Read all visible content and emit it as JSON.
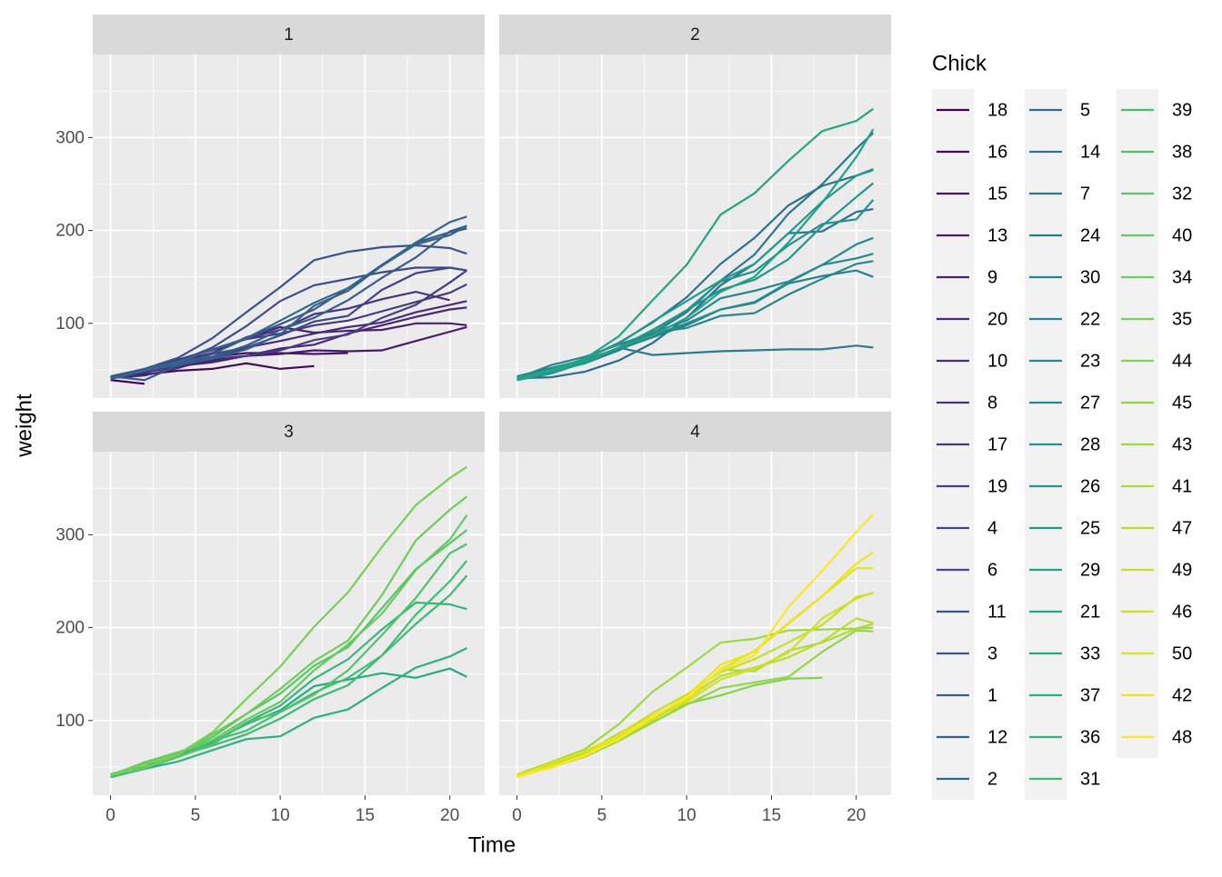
{
  "chart_data": {
    "type": "line",
    "x_label": "Time",
    "y_label": "weight",
    "legend_title": "Chick",
    "x": [
      0,
      2,
      4,
      6,
      8,
      10,
      12,
      14,
      16,
      18,
      20,
      21
    ],
    "xlim": [
      -1.05,
      22.05
    ],
    "xticks": [
      0,
      5,
      10,
      15,
      20
    ],
    "ylim": [
      19.6,
      389.4
    ],
    "yticks": [
      100,
      200,
      300
    ],
    "grid": true,
    "facets": [
      {
        "title": "1",
        "series": [
          {
            "name": "18",
            "color": "#440154",
            "values": [
              39,
              35,
              null,
              null,
              null,
              null,
              null,
              null,
              null,
              null,
              null,
              null
            ]
          },
          {
            "name": "16",
            "color": "#460a5d",
            "values": [
              41,
              45,
              49,
              51,
              57,
              51,
              54,
              null,
              null,
              null,
              null,
              null
            ]
          },
          {
            "name": "15",
            "color": "#471365",
            "values": [
              41,
              49,
              56,
              64,
              68,
              68,
              67,
              68,
              null,
              null,
              null,
              null
            ]
          },
          {
            "name": "13",
            "color": "#481b6d",
            "values": [
              41,
              48,
              53,
              60,
              65,
              67,
              71,
              70,
              71,
              81,
              91,
              96
            ]
          },
          {
            "name": "9",
            "color": "#482173",
            "values": [
              42,
              51,
              59,
              68,
              85,
              96,
              90,
              92,
              93,
              100,
              100,
              98
            ]
          },
          {
            "name": "20",
            "color": "#482576",
            "values": [
              41,
              47,
              54,
              58,
              65,
              73,
              77,
              89,
              98,
              107,
              115,
              117
            ]
          },
          {
            "name": "10",
            "color": "#472c7a",
            "values": [
              41,
              44,
              52,
              63,
              74,
              81,
              89,
              96,
              101,
              112,
              120,
              124
            ]
          },
          {
            "name": "8",
            "color": "#46337e",
            "values": [
              42,
              50,
              61,
              71,
              84,
              93,
              110,
              116,
              126,
              134,
              125,
              null
            ]
          },
          {
            "name": "17",
            "color": "#453981",
            "values": [
              42,
              51,
              61,
              72,
              83,
              89,
              98,
              103,
              113,
              123,
              133,
              142
            ]
          },
          {
            "name": "19",
            "color": "#433e85",
            "values": [
              43,
              48,
              55,
              62,
              65,
              71,
              82,
              88,
              106,
              120,
              144,
              157
            ]
          },
          {
            "name": "4",
            "color": "#414487",
            "values": [
              42,
              49,
              56,
              67,
              74,
              87,
              102,
              108,
              136,
              154,
              160,
              157
            ]
          },
          {
            "name": "6",
            "color": "#3e4a89",
            "values": [
              41,
              49,
              59,
              74,
              97,
              124,
              141,
              148,
              155,
              160,
              160,
              157
            ]
          },
          {
            "name": "11",
            "color": "#3b518b",
            "values": [
              43,
              51,
              63,
              84,
              112,
              139,
              168,
              177,
              182,
              184,
              181,
              175
            ]
          },
          {
            "name": "3",
            "color": "#38578c",
            "values": [
              43,
              39,
              55,
              67,
              84,
              99,
              115,
              138,
              163,
              187,
              198,
              202
            ]
          },
          {
            "name": "1",
            "color": "#365d8d",
            "values": [
              42,
              51,
              59,
              64,
              76,
              93,
              106,
              125,
              149,
              171,
              199,
              205
            ]
          },
          {
            "name": "12",
            "color": "#33638d",
            "values": [
              41,
              49,
              56,
              62,
              72,
              88,
              119,
              135,
              162,
              185,
              195,
              205
            ]
          },
          {
            "name": "2",
            "color": "#31688e",
            "values": [
              40,
              49,
              58,
              72,
              84,
              103,
              122,
              138,
              162,
              187,
              209,
              215
            ]
          }
        ]
      },
      {
        "title": "2",
        "series": [
          {
            "name": "5",
            "color": "#2f6d8e",
            "values": [
              41,
              42,
              48,
              60,
              79,
              106,
              141,
              164,
              197,
              199,
              220,
              223
            ]
          },
          {
            "name": "14",
            "color": "#2c728e",
            "values": [
              41,
              49,
              62,
              79,
              101,
              128,
              164,
              192,
              227,
              248,
              259,
              266
            ]
          },
          {
            "name": "7",
            "color": "#2a778e",
            "values": [
              41,
              49,
              57,
              71,
              89,
              112,
              146,
              174,
              218,
              250,
              288,
              305
            ]
          },
          {
            "name": "24",
            "color": "#287c8e",
            "values": [
              42,
              52,
              58,
              74,
              66,
              68,
              70,
              71,
              72,
              72,
              76,
              74
            ]
          },
          {
            "name": "30",
            "color": "#26818e",
            "values": [
              42,
              48,
              59,
              72,
              85,
              98,
              115,
              122,
              143,
              151,
              157,
              150
            ]
          },
          {
            "name": "22",
            "color": "#25868e",
            "values": [
              41,
              55,
              64,
              77,
              90,
              95,
              108,
              111,
              131,
              148,
              164,
              167
            ]
          },
          {
            "name": "23",
            "color": "#23898e",
            "values": [
              43,
              52,
              61,
              73,
              90,
              103,
              127,
              135,
              145,
              163,
              170,
              175
            ]
          },
          {
            "name": "27",
            "color": "#218e8d",
            "values": [
              39,
              46,
              58,
              73,
              87,
              100,
              115,
              123,
              144,
              163,
              185,
              192
            ]
          },
          {
            "name": "28",
            "color": "#20938c",
            "values": [
              39,
              46,
              58,
              73,
              92,
              114,
              145,
              156,
              184,
              207,
              212,
              233
            ]
          },
          {
            "name": "26",
            "color": "#1f988b",
            "values": [
              42,
              48,
              57,
              74,
              93,
              114,
              136,
              147,
              169,
              205,
              236,
              251
            ]
          },
          {
            "name": "25",
            "color": "#209d89",
            "values": [
              40,
              49,
              62,
              78,
              102,
              124,
              146,
              164,
              197,
              231,
              259,
              265
            ]
          },
          {
            "name": "29",
            "color": "#20a286",
            "values": [
              39,
              48,
              59,
              74,
              87,
              106,
              134,
              150,
              187,
              230,
              279,
              309
            ]
          },
          {
            "name": "21",
            "color": "#21a685",
            "values": [
              40,
              50,
              62,
              86,
              125,
              163,
              217,
              240,
              275,
              307,
              318,
              331
            ]
          }
        ]
      },
      {
        "title": "3",
        "series": [
          {
            "name": "33",
            "color": "#25ab82",
            "values": [
              39,
              50,
              63,
              77,
              96,
              111,
              137,
              144,
              151,
              146,
              156,
              147
            ]
          },
          {
            "name": "37",
            "color": "#2cb17e",
            "values": [
              41,
              48,
              56,
              68,
              80,
              83,
              103,
              112,
              135,
              157,
              169,
              178
            ]
          },
          {
            "name": "36",
            "color": "#33b67a",
            "values": [
              39,
              48,
              61,
              76,
              98,
              116,
              145,
              166,
              198,
              227,
              225,
              220
            ]
          },
          {
            "name": "31",
            "color": "#3bbb75",
            "values": [
              42,
              53,
              62,
              73,
              85,
              102,
              123,
              138,
              170,
              204,
              235,
              256
            ]
          },
          {
            "name": "39",
            "color": "#42bf71",
            "values": [
              42,
              50,
              61,
              78,
              89,
              109,
              130,
              146,
              170,
              214,
              250,
              272
            ]
          },
          {
            "name": "38",
            "color": "#4ec36b",
            "values": [
              41,
              49,
              61,
              74,
              98,
              109,
              128,
              154,
              192,
              232,
              280,
              290
            ]
          },
          {
            "name": "32",
            "color": "#58c765",
            "values": [
              41,
              49,
              65,
              82,
              107,
              129,
              159,
              179,
              221,
              263,
              291,
              305
            ]
          },
          {
            "name": "40",
            "color": "#63cb5f",
            "values": [
              41,
              55,
              66,
              79,
              101,
              120,
              154,
              182,
              215,
              262,
              295,
              321
            ]
          },
          {
            "name": "34",
            "color": "#6dcd59",
            "values": [
              41,
              49,
              63,
              85,
              107,
              134,
              164,
              186,
              235,
              294,
              327,
              341
            ]
          },
          {
            "name": "35",
            "color": "#77d153",
            "values": [
              41,
              53,
              64,
              87,
              123,
              158,
              201,
              238,
              287,
              332,
              361,
              373
            ]
          }
        ]
      },
      {
        "title": "4",
        "series": [
          {
            "name": "44",
            "color": "#83d44c",
            "values": [
              42,
              51,
              65,
              86,
              103,
              118,
              127,
              138,
              145,
              146,
              null,
              null
            ]
          },
          {
            "name": "45",
            "color": "#91d743",
            "values": [
              41,
              50,
              61,
              78,
              98,
              117,
              135,
              141,
              147,
              174,
              197,
              196
            ]
          },
          {
            "name": "43",
            "color": "#9ed93a",
            "values": [
              42,
              55,
              69,
              96,
              131,
              157,
              184,
              188,
              197,
              198,
              199,
              200
            ]
          },
          {
            "name": "41",
            "color": "#acdc30",
            "values": [
              42,
              51,
              66,
              85,
              103,
              124,
              155,
              153,
              175,
              184,
              199,
              204
            ]
          },
          {
            "name": "47",
            "color": "#b9de28",
            "values": [
              41,
              53,
              66,
              79,
              100,
              123,
              148,
              157,
              168,
              185,
              210,
              205
            ]
          },
          {
            "name": "49",
            "color": "#c6e021",
            "values": [
              40,
              53,
              64,
              85,
              108,
              128,
              152,
              166,
              184,
              203,
              233,
              237
            ]
          },
          {
            "name": "46",
            "color": "#d2e21b",
            "values": [
              40,
              52,
              62,
              82,
              101,
              120,
              144,
              156,
              173,
              210,
              231,
              238
            ]
          },
          {
            "name": "50",
            "color": "#dfe318",
            "values": [
              41,
              54,
              67,
              84,
              105,
              122,
              155,
              175,
              205,
              234,
              264,
              264
            ]
          },
          {
            "name": "42",
            "color": "#ece51b",
            "values": [
              42,
              49,
              63,
              84,
              103,
              126,
              160,
              174,
              204,
              234,
              269,
              281
            ]
          },
          {
            "name": "48",
            "color": "#fde725",
            "values": [
              39,
              50,
              62,
              80,
              104,
              125,
              154,
              170,
              222,
              261,
              303,
              322
            ]
          }
        ]
      }
    ]
  }
}
